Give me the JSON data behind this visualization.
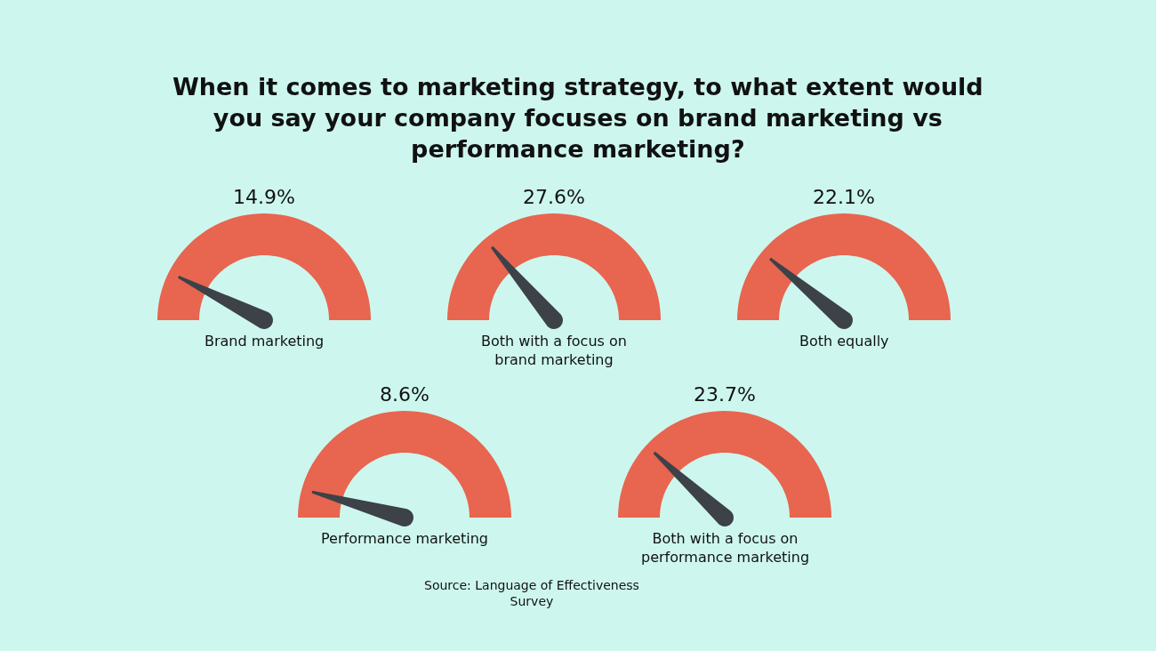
{
  "chart_data": {
    "type": "other",
    "title": "When it comes to marketing strategy, to what extent would you say your company focuses on brand marketing vs performance marketing?",
    "categories": [
      "Brand marketing",
      "Both with a focus on brand marketing",
      "Both equally",
      "Performance marketing",
      "Both with a focus on performance marketing"
    ],
    "values": [
      14.9,
      27.6,
      22.1,
      8.6,
      23.7
    ],
    "value_labels": [
      "14.9%",
      "27.6%",
      "22.1%",
      "8.6%",
      "23.7%"
    ],
    "color": "#e8654f",
    "annotations": [
      "Source: Language of Effectiveness Survey"
    ]
  }
}
